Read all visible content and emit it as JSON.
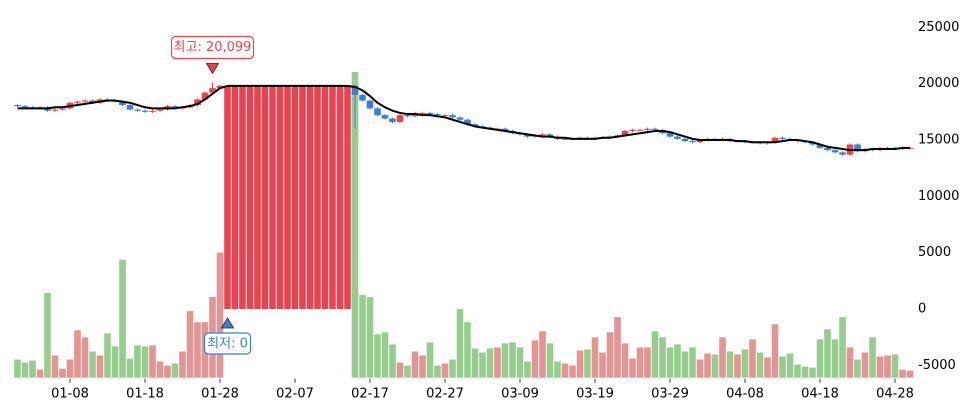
{
  "chart_data": {
    "type": "candlestick",
    "categories": [
      null,
      null,
      null,
      null,
      null,
      null,
      null,
      "01-08",
      null,
      null,
      null,
      null,
      null,
      null,
      null,
      null,
      null,
      "01-18",
      null,
      null,
      null,
      null,
      null,
      null,
      null,
      null,
      null,
      "01-28",
      null,
      null,
      null,
      null,
      null,
      null,
      null,
      null,
      null,
      "02-07",
      null,
      null,
      null,
      null,
      null,
      null,
      null,
      null,
      null,
      "02-17",
      null,
      null,
      null,
      null,
      null,
      null,
      null,
      null,
      null,
      "02-27",
      null,
      null,
      null,
      null,
      null,
      null,
      null,
      null,
      null,
      "03-09",
      null,
      null,
      null,
      null,
      null,
      null,
      null,
      null,
      null,
      "03-19",
      null,
      null,
      null,
      null,
      null,
      null,
      null,
      null,
      null,
      "03-29",
      null,
      null,
      null,
      null,
      null,
      null,
      null,
      null,
      null,
      "04-08",
      null,
      null,
      null,
      null,
      null,
      null,
      null,
      null,
      null,
      "04-18",
      null,
      null,
      null,
      null,
      null,
      null,
      null,
      null,
      null,
      "04-28",
      null,
      null
    ],
    "ohlc": [
      [
        18100,
        18200,
        17900,
        18000
      ],
      [
        18000,
        18100,
        17800,
        17900
      ],
      [
        17900,
        18000,
        17700,
        17800
      ],
      [
        17800,
        18000,
        17700,
        17900
      ],
      [
        17900,
        18000,
        17500,
        17600
      ],
      [
        17600,
        17800,
        17500,
        17700
      ],
      [
        17700,
        17900,
        17600,
        17800
      ],
      [
        17800,
        18400,
        17700,
        18300
      ],
      [
        18300,
        18500,
        18200,
        18400
      ],
      [
        18400,
        18600,
        18300,
        18500
      ],
      [
        18500,
        18600,
        18200,
        18300
      ],
      [
        18300,
        18700,
        18200,
        18600
      ],
      [
        18600,
        18700,
        18400,
        18500
      ],
      [
        18500,
        18600,
        18300,
        18400
      ],
      [
        18400,
        18500,
        18000,
        18100
      ],
      [
        18100,
        18200,
        17600,
        17700
      ],
      [
        17700,
        17800,
        17500,
        17600
      ],
      [
        17600,
        17700,
        17400,
        17500
      ],
      [
        17500,
        17700,
        17400,
        17600
      ],
      [
        17600,
        17800,
        17500,
        17700
      ],
      [
        17700,
        18100,
        17600,
        18000
      ],
      [
        18000,
        18100,
        17700,
        17800
      ],
      [
        17800,
        18000,
        17700,
        17900
      ],
      [
        17900,
        18200,
        17800,
        18100
      ],
      [
        18100,
        18700,
        18000,
        18600
      ],
      [
        18600,
        19300,
        18500,
        19200
      ],
      [
        19200,
        20099,
        19100,
        19600
      ],
      [
        19600,
        19900,
        19500,
        19800
      ],
      [
        0,
        19800,
        0,
        19800
      ],
      [
        0,
        19800,
        0,
        19800
      ],
      [
        0,
        19800,
        0,
        19800
      ],
      [
        0,
        19800,
        0,
        19800
      ],
      [
        0,
        19800,
        0,
        19800
      ],
      [
        0,
        19800,
        0,
        19800
      ],
      [
        0,
        19800,
        0,
        19800
      ],
      [
        0,
        19800,
        0,
        19800
      ],
      [
        0,
        19800,
        0,
        19800
      ],
      [
        0,
        19800,
        0,
        19800
      ],
      [
        0,
        19800,
        0,
        19800
      ],
      [
        0,
        19800,
        0,
        19800
      ],
      [
        0,
        19800,
        0,
        19800
      ],
      [
        0,
        19800,
        0,
        19800
      ],
      [
        0,
        19800,
        0,
        19800
      ],
      [
        0,
        19800,
        0,
        19800
      ],
      [
        0,
        19800,
        0,
        19800
      ],
      [
        19800,
        19900,
        16000,
        19000
      ],
      [
        19000,
        19100,
        18400,
        18500
      ],
      [
        18500,
        18600,
        17700,
        17800
      ],
      [
        17800,
        17900,
        17100,
        17200
      ],
      [
        17200,
        17300,
        16800,
        16900
      ],
      [
        16900,
        17000,
        16500,
        16600
      ],
      [
        16600,
        17300,
        16500,
        17200
      ],
      [
        17200,
        17300,
        17000,
        17100
      ],
      [
        17100,
        17500,
        17000,
        17400
      ],
      [
        17400,
        17500,
        17300,
        17400
      ],
      [
        17400,
        17500,
        17200,
        17300
      ],
      [
        17300,
        17400,
        17100,
        17200
      ],
      [
        17200,
        17300,
        17100,
        17200
      ],
      [
        17200,
        17300,
        16900,
        17000
      ],
      [
        17000,
        17100,
        16700,
        16800
      ],
      [
        16800,
        16900,
        16300,
        16400
      ],
      [
        16400,
        16500,
        16100,
        16200
      ],
      [
        16200,
        16300,
        16000,
        16100
      ],
      [
        16100,
        16200,
        15900,
        16000
      ],
      [
        16000,
        16100,
        15900,
        16000
      ],
      [
        16000,
        16100,
        15700,
        15800
      ],
      [
        15800,
        15900,
        15500,
        15600
      ],
      [
        15600,
        15700,
        15400,
        15500
      ],
      [
        15500,
        15600,
        15200,
        15300
      ],
      [
        15300,
        15500,
        15200,
        15400
      ],
      [
        15400,
        15600,
        15300,
        15500
      ],
      [
        15500,
        15600,
        15200,
        15300
      ],
      [
        15300,
        15400,
        15000,
        15100
      ],
      [
        15100,
        15200,
        15000,
        15100
      ],
      [
        15100,
        15200,
        15000,
        15100
      ],
      [
        15100,
        15300,
        15000,
        15200
      ],
      [
        15200,
        15300,
        15000,
        15100
      ],
      [
        15100,
        15300,
        15000,
        15200
      ],
      [
        15200,
        15300,
        15100,
        15200
      ],
      [
        15200,
        15400,
        15100,
        15300
      ],
      [
        15300,
        15500,
        15200,
        15400
      ],
      [
        15400,
        15900,
        15300,
        15800
      ],
      [
        15800,
        16000,
        15700,
        15900
      ],
      [
        15900,
        16000,
        15800,
        15900
      ],
      [
        15900,
        16100,
        15800,
        16000
      ],
      [
        16000,
        16100,
        15800,
        15900
      ],
      [
        15900,
        16000,
        15500,
        15600
      ],
      [
        15600,
        15700,
        15200,
        15300
      ],
      [
        15300,
        15400,
        15000,
        15100
      ],
      [
        15100,
        15200,
        14800,
        14900
      ],
      [
        14900,
        15000,
        14700,
        14800
      ],
      [
        14800,
        15100,
        14700,
        15000
      ],
      [
        15000,
        15200,
        14900,
        15100
      ],
      [
        15100,
        15200,
        14900,
        15000
      ],
      [
        15000,
        15200,
        14900,
        15100
      ],
      [
        15100,
        15200,
        14800,
        14900
      ],
      [
        14900,
        15000,
        14800,
        14900
      ],
      [
        14900,
        15000,
        14700,
        14800
      ],
      [
        14800,
        14900,
        14700,
        14800
      ],
      [
        14800,
        14900,
        14600,
        14700
      ],
      [
        14700,
        14900,
        14600,
        14800
      ],
      [
        14800,
        15300,
        14700,
        15200
      ],
      [
        15200,
        15300,
        15000,
        15100
      ],
      [
        15100,
        15200,
        14900,
        15000
      ],
      [
        15000,
        15100,
        14800,
        14900
      ],
      [
        14900,
        15000,
        14700,
        14800
      ],
      [
        14800,
        14900,
        14500,
        14600
      ],
      [
        14600,
        14700,
        14200,
        14300
      ],
      [
        14300,
        14400,
        14000,
        14100
      ],
      [
        14100,
        14200,
        13800,
        13900
      ],
      [
        13900,
        14000,
        13600,
        13700
      ],
      [
        13700,
        14700,
        13600,
        14600
      ],
      [
        14600,
        14700,
        13900,
        14000
      ],
      [
        14000,
        14300,
        13900,
        14200
      ],
      [
        14200,
        14300,
        14000,
        14100
      ],
      [
        14100,
        14400,
        14000,
        14300
      ],
      [
        14300,
        14400,
        14200,
        14300
      ],
      [
        14300,
        14400,
        14100,
        14200
      ],
      [
        14200,
        14400,
        14100,
        14300
      ],
      [
        14300,
        14400,
        14200,
        14300
      ]
    ],
    "ma": [
      17800,
      17800,
      17800,
      17800,
      17800,
      17900,
      17900,
      18000,
      18100,
      18200,
      18300,
      18400,
      18500,
      18500,
      18400,
      18300,
      18100,
      17900,
      17800,
      17800,
      17800,
      17800,
      17900,
      18000,
      18200,
      18600,
      19100,
      19600,
      19800,
      19800,
      19800,
      19800,
      19800,
      19800,
      19800,
      19800,
      19800,
      19800,
      19800,
      19800,
      19800,
      19800,
      19800,
      19800,
      19800,
      19700,
      19400,
      18900,
      18300,
      17900,
      17600,
      17400,
      17300,
      17300,
      17200,
      17200,
      17100,
      17000,
      16800,
      16600,
      16400,
      16200,
      16100,
      16000,
      15900,
      15800,
      15700,
      15600,
      15500,
      15400,
      15300,
      15300,
      15200,
      15200,
      15100,
      15100,
      15100,
      15100,
      15200,
      15200,
      15300,
      15400,
      15500,
      15600,
      15700,
      15800,
      15800,
      15700,
      15500,
      15300,
      15100,
      15000,
      15000,
      15000,
      15000,
      15000,
      14900,
      14900,
      14800,
      14800,
      14800,
      14800,
      14900,
      15000,
      15000,
      14900,
      14800,
      14600,
      14400,
      14300,
      14200,
      14100,
      14100,
      14100,
      14200,
      14200,
      14200,
      14200,
      14300,
      14300
    ],
    "volume": [
      18,
      15,
      17,
      8,
      84,
      22,
      9,
      18,
      47,
      40,
      26,
      22,
      44,
      31,
      117,
      19,
      32,
      31,
      32,
      16,
      12,
      14,
      26,
      66,
      55,
      55,
      80,
      124,
      null,
      null,
      null,
      null,
      null,
      null,
      null,
      null,
      null,
      null,
      null,
      null,
      null,
      null,
      null,
      null,
      null,
      303,
      82,
      80,
      43,
      45,
      33,
      15,
      12,
      26,
      22,
      35,
      12,
      14,
      18,
      68,
      55,
      29,
      25,
      29,
      30,
      34,
      35,
      30,
      16,
      37,
      46,
      34,
      16,
      14,
      12,
      27,
      28,
      40,
      25,
      45,
      60,
      34,
      19,
      30,
      30,
      46,
      40,
      30,
      33,
      26,
      30,
      18,
      24,
      23,
      40,
      26,
      23,
      28,
      38,
      25,
      20,
      53,
      21,
      24,
      13,
      11,
      10,
      38,
      48,
      38,
      60,
      30,
      18,
      25,
      40,
      21,
      22,
      23,
      8,
      7
    ],
    "volume_lim": [
      0,
      300
    ],
    "ylim": [
      -6100,
      26500
    ],
    "yticks": [
      25000,
      20000,
      15000,
      10000,
      5000,
      0,
      -5000
    ],
    "up_color": "#e8434f",
    "down_color": "#3a7fd5",
    "up_volume_color": "#e39594",
    "down_volume_color": "#96cd8f",
    "ma_color": "#000000",
    "max_label": "최고: 20,099",
    "min_label": "최저: 0"
  }
}
